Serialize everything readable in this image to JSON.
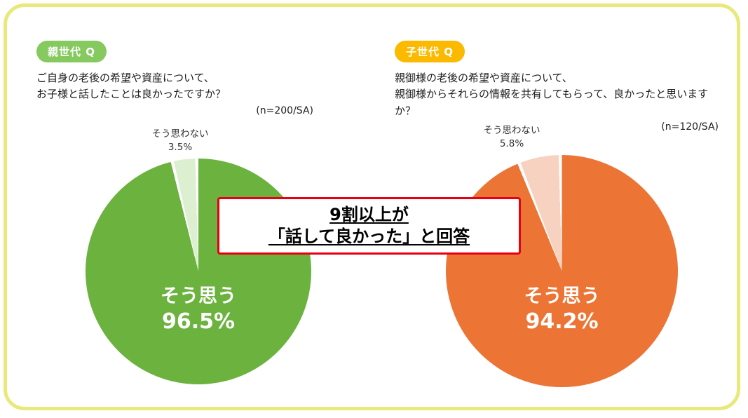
{
  "frame": {
    "border_color": "#e8e97a",
    "background": "#ffffff"
  },
  "callout": {
    "line1": "9割以上が",
    "line2": "「話して良かった」と回答",
    "border_color": "#e60012"
  },
  "chart_data": [
    {
      "type": "pie",
      "badge": "親世代 Q",
      "badge_color": "#85c95f",
      "question_line1": "ご自身の老後の希望や資産について、",
      "question_line2": "お子様と話したことは良かったですか？",
      "sample": "(n=200/SA)",
      "start_angle_deg": 0,
      "direction": "clockwise",
      "slices": [
        {
          "label": "そう思う",
          "value": 96.5,
          "value_label": "96.5%",
          "color": "#6bb23f"
        },
        {
          "label": "そう思わない",
          "value": 3.5,
          "value_label": "3.5%",
          "color": "#dcefd0"
        }
      ]
    },
    {
      "type": "pie",
      "badge": "子世代 Q",
      "badge_color": "#fbb900",
      "question_line1": "親御様の老後の希望や資産について、",
      "question_line2": "親御様からそれらの情報を共有してもらって、良かったと思いますか？",
      "sample": "(n=120/SA)",
      "start_angle_deg": 0,
      "direction": "clockwise",
      "slices": [
        {
          "label": "そう思う",
          "value": 94.2,
          "value_label": "94.2%",
          "color": "#ec7434"
        },
        {
          "label": "そう思わない",
          "value": 5.8,
          "value_label": "5.8%",
          "color": "#f8d2c0"
        }
      ]
    }
  ]
}
